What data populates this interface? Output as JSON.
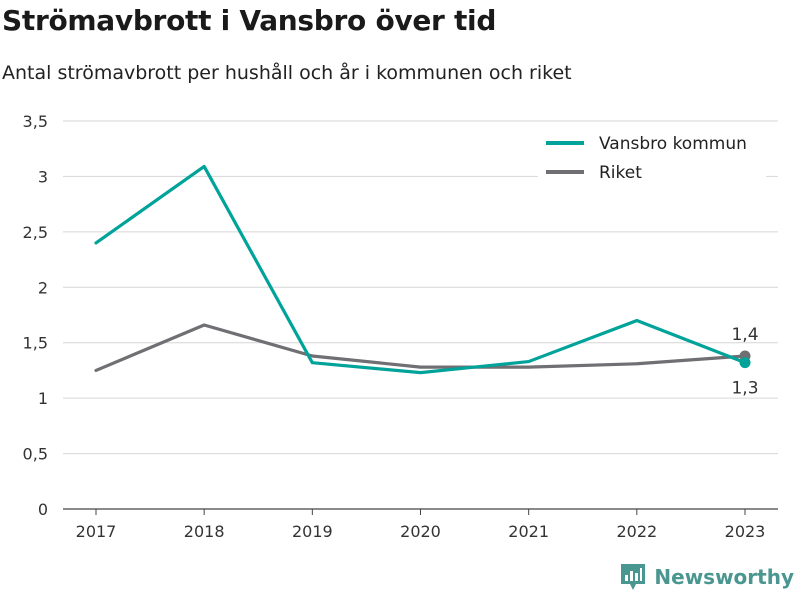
{
  "header": {
    "title": "Strömavbrott i Vansbro över tid",
    "subtitle": "Antal strömavbrott per hushåll och år i kommunen och riket"
  },
  "brand": {
    "name": "Newsworthy",
    "color": "#4a9690"
  },
  "chart_data": {
    "type": "line",
    "title": "Strömavbrott i Vansbro över tid",
    "subtitle": "Antal strömavbrott per hushåll och år i kommunen och riket",
    "xlabel": "",
    "ylabel": "",
    "categories": [
      "2017",
      "2018",
      "2019",
      "2020",
      "2021",
      "2022",
      "2023"
    ],
    "ylim": [
      0,
      3.5
    ],
    "yticks": [
      0,
      0.5,
      1,
      1.5,
      2,
      2.5,
      3,
      3.5
    ],
    "ytick_labels": [
      "0",
      "0,5",
      "1",
      "1,5",
      "2",
      "2,5",
      "3",
      "3,5"
    ],
    "grid": true,
    "legend": "top-right",
    "series": [
      {
        "name": "Vansbro kommun",
        "color": "#00a39a",
        "values": [
          2.4,
          3.09,
          1.32,
          1.23,
          1.33,
          1.7,
          1.32
        ]
      },
      {
        "name": "Riket",
        "color": "#6f6f74",
        "values": [
          1.25,
          1.66,
          1.38,
          1.28,
          1.28,
          1.31,
          1.38
        ]
      }
    ],
    "end_labels": [
      {
        "series": "Riket",
        "text": "1,4",
        "position": "above"
      },
      {
        "series": "Vansbro kommun",
        "text": "1,3",
        "position": "below"
      }
    ]
  }
}
